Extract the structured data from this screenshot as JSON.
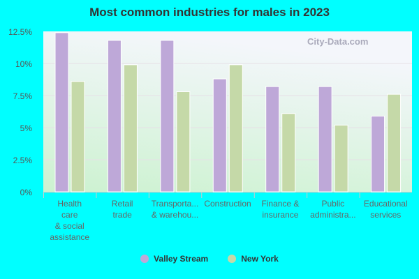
{
  "chart_data": {
    "type": "bar",
    "title": "Most common industries for males in 2023",
    "categories": [
      [
        "Health",
        "care",
        "& social",
        "assistance"
      ],
      [
        "Retail",
        "trade"
      ],
      [
        "Transporta...",
        "& warehou..."
      ],
      [
        "Construction"
      ],
      [
        "Finance &",
        "insurance"
      ],
      [
        "Public",
        "administra..."
      ],
      [
        "Educational",
        "services"
      ]
    ],
    "series": [
      {
        "name": "Valley Stream",
        "color": "#bea8d8",
        "values": [
          12.4,
          11.8,
          11.8,
          8.8,
          8.2,
          8.2,
          5.9
        ]
      },
      {
        "name": "New York",
        "color": "#c5d9a8",
        "values": [
          8.6,
          9.9,
          7.8,
          9.9,
          6.1,
          5.2,
          7.6
        ]
      }
    ],
    "ylim": [
      0,
      12.5
    ],
    "yticks": [
      "0%",
      "2.5%",
      "5%",
      "7.5%",
      "10%",
      "12.5%"
    ],
    "grid": true,
    "legend": "bottom"
  },
  "watermark": "City-Data.com"
}
